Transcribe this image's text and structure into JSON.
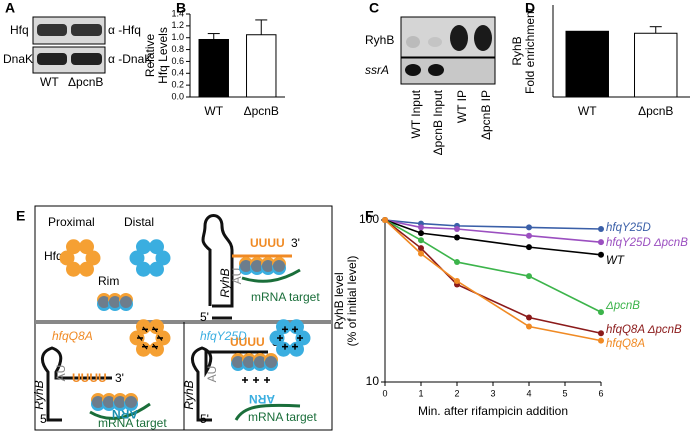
{
  "panel_labels": {
    "a": "A",
    "b": "B",
    "c": "C",
    "d": "D",
    "e": "E",
    "f": "F"
  },
  "blot_a": {
    "rows": [
      "Hfq",
      "DnaK"
    ],
    "antibodies": [
      "α -Hfq",
      "α -DnaK"
    ],
    "lanes": [
      "WT",
      "ΔpcnB"
    ]
  },
  "blot_c": {
    "rows": [
      "RyhB",
      "ssrA"
    ],
    "lanes": [
      "WT Input",
      "ΔpcnB Input",
      "WT IP",
      "ΔpcnB IP"
    ]
  },
  "diagram_e": {
    "proximal": "Proximal",
    "distal": "Distal",
    "hfq": "Hfq",
    "rim": "Rim",
    "ryhb": "RyhB",
    "uuuu": "UUUU",
    "three_prime": "3'",
    "five_prime": "5'",
    "au": "AU",
    "mrna_target": "mRNA target",
    "arn": "ARN",
    "hfqQ8A": "hfqQ8A",
    "hfqY25D": "hfqY25D"
  },
  "chart_data": [
    {
      "type": "bar",
      "ylabel": [
        "Relative",
        "Hfq Levels"
      ],
      "categories": [
        "WT",
        "ΔpcnB"
      ],
      "values": [
        0.97,
        1.05
      ],
      "errors": [
        0.1,
        0.25
      ],
      "colors": [
        "#000000",
        "#ffffff"
      ],
      "ylim": [
        0,
        1.4
      ],
      "yticks": [
        {
          "value": 0,
          "label": "0.0"
        },
        0.2,
        0.4,
        0.6,
        0.8,
        {
          "value": 1,
          "label": "1.0"
        },
        1.2,
        1.4
      ]
    },
    {
      "type": "bar",
      "ylabel": [
        "RyhB",
        "Fold enrichment"
      ],
      "categories": [
        "WT",
        "ΔpcnB"
      ],
      "values": [
        1.0,
        0.97
      ],
      "errors": [
        null,
        0.1
      ],
      "colors": [
        "#000000",
        "#ffffff"
      ],
      "ylim": [
        0,
        1.4
      ]
    },
    {
      "type": "line",
      "ylabel": [
        "RyhB level",
        "(% of initial level)"
      ],
      "xlabel": "Min. after rifampicin addition",
      "x": [
        0,
        1,
        2,
        4,
        6
      ],
      "log": true,
      "series": [
        {
          "name": "hfqY25D",
          "color": "#3a5fa8",
          "values": [
            100,
            95,
            92,
            90,
            88
          ]
        },
        {
          "name": "hfqY25D ΔpcnB",
          "color": "#9b4fc0",
          "values": [
            100,
            90,
            88,
            80,
            73
          ]
        },
        {
          "name": "WT",
          "color": "#000000",
          "values": [
            100,
            83,
            78,
            68,
            61
          ]
        },
        {
          "name": "ΔpcnB",
          "color": "#3cb44b",
          "values": [
            100,
            75,
            55,
            45,
            27
          ]
        },
        {
          "name": "hfqQ8A ΔpcnB",
          "color": "#8b1a1a",
          "values": [
            100,
            67,
            40,
            25,
            20
          ]
        },
        {
          "name": "hfqQ8A",
          "color": "#f08a24",
          "values": [
            100,
            62,
            42,
            22,
            18
          ]
        }
      ],
      "xlim": [
        0,
        6
      ],
      "xticks": [
        0,
        1,
        2,
        3,
        4,
        5,
        6
      ],
      "ylim": [
        10,
        100
      ],
      "yticks": [
        10,
        100
      ]
    }
  ]
}
